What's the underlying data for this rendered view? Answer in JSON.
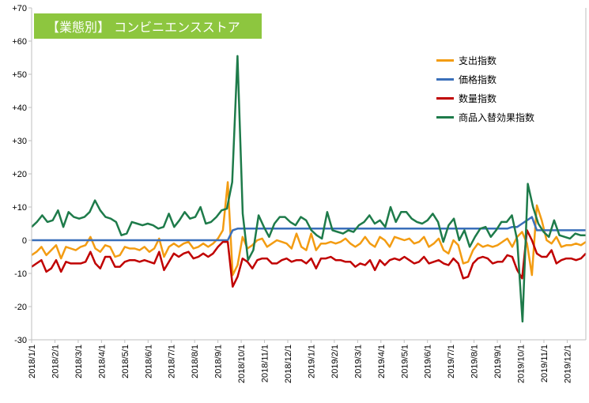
{
  "chart_data": {
    "type": "line",
    "title": "【業態別】 コンビニエンスストア",
    "ylim": [
      -30,
      70
    ],
    "yticks": [
      "+70",
      "+60",
      "+50",
      "+40",
      "+30",
      "+20",
      "+10",
      "0",
      "-10",
      "-20",
      "-30"
    ],
    "ytick_values": [
      70,
      60,
      50,
      40,
      30,
      20,
      10,
      0,
      -10,
      -20,
      -30
    ],
    "xticks": [
      "2018/1/1",
      "2018/2/1",
      "2018/3/1",
      "2018/4/1",
      "2018/5/1",
      "2018/6/1",
      "2018/7/1",
      "2018/8/1",
      "2018/9/1",
      "2018/10/1",
      "2018/11/1",
      "2018/12/1",
      "2019/1/1",
      "2019/2/1",
      "2019/3/1",
      "2019/4/1",
      "2019/5/1",
      "2019/6/1",
      "2019/7/1",
      "2019/8/1",
      "2019/9/1",
      "2019/10/1",
      "2019/11/1",
      "2019/12/1"
    ],
    "legend_position": "top-right",
    "grid": false,
    "series": [
      {
        "name": "支出指数",
        "color": "#f39c12",
        "values": [
          -4.5,
          -3.5,
          -2,
          -4.5,
          -3,
          -1.5,
          -5.5,
          -2,
          -2.5,
          -3,
          -2,
          -1.5,
          1,
          -2.5,
          -3.5,
          -1.5,
          -2,
          -5,
          -4.5,
          -2,
          -2.5,
          -2.5,
          -3,
          -2,
          -3.5,
          -2.5,
          0.5,
          -5,
          -2,
          -1,
          -2,
          -1,
          -0.5,
          -2.5,
          -2,
          -1,
          -2,
          -1,
          0.5,
          3,
          17.5,
          -10.5,
          -7.5,
          1,
          -2.5,
          -1.5,
          0,
          0.5,
          -2,
          -1,
          0,
          -0.5,
          -1,
          -2.5,
          2,
          -2,
          -3,
          2,
          -3,
          -1,
          -1,
          -0.5,
          -1,
          -0.5,
          0.5,
          -1,
          -2,
          -1,
          1,
          -1,
          -2,
          1,
          0,
          -2,
          1,
          0.5,
          0,
          0.5,
          -1,
          -0.5,
          1,
          -2,
          -1,
          0.5,
          -3,
          -4,
          0,
          -1.5,
          -7,
          -6.5,
          -3,
          -1,
          -2,
          -1.5,
          -2,
          -1.5,
          -0.5,
          0.5,
          -2,
          1,
          2.5,
          -1,
          -10.5,
          10.5,
          6,
          0,
          -1,
          1,
          -2,
          -1.5,
          -1.5,
          -1,
          -1.5,
          -0.5
        ]
      },
      {
        "name": "価格指数",
        "color": "#3a6fba",
        "values": [
          0,
          0,
          0,
          0,
          0,
          0,
          0,
          0,
          0,
          0,
          0,
          0,
          0,
          0,
          0,
          0,
          0,
          0,
          0,
          0,
          0,
          0,
          0,
          0,
          0,
          0,
          0,
          0,
          0,
          0,
          0,
          0,
          0,
          0,
          0,
          0,
          0,
          0,
          0,
          0,
          0,
          3,
          3.5,
          3.5,
          3.5,
          3.5,
          3.5,
          3.5,
          3.5,
          3.5,
          3.5,
          3.5,
          3.5,
          3.5,
          3.5,
          3.5,
          3.5,
          3.5,
          3.5,
          3.5,
          3.5,
          3.5,
          3.5,
          3.5,
          3.5,
          3.5,
          3.5,
          3.5,
          3.5,
          3.5,
          3.5,
          3.5,
          3.5,
          3.5,
          3.5,
          3.5,
          3.5,
          3.5,
          3.5,
          3.5,
          3.5,
          3.5,
          3.5,
          3.5,
          3.5,
          3.5,
          3.5,
          3.5,
          3.5,
          3.5,
          3.5,
          3.5,
          3.5,
          3.5,
          3.5,
          3.5,
          3.5,
          3.5,
          4,
          4,
          5,
          6,
          7,
          3,
          3,
          3,
          3,
          3,
          3,
          3,
          3,
          3,
          3,
          3
        ]
      },
      {
        "name": "数量指数",
        "color": "#c00000",
        "values": [
          -8,
          -7,
          -6,
          -9.5,
          -8.5,
          -6,
          -9.5,
          -6.5,
          -7,
          -7,
          -7,
          -6.5,
          -3.5,
          -7,
          -8.5,
          -5,
          -5,
          -8,
          -8,
          -6.5,
          -6,
          -6,
          -6.5,
          -6,
          -6.5,
          -7,
          -3.5,
          -9,
          -6.5,
          -4,
          -5,
          -4,
          -3.5,
          -5.5,
          -5,
          -4,
          -5,
          -4,
          -2,
          -0.5,
          -0.5,
          -14,
          -11,
          -5.5,
          -6.5,
          -8.5,
          -6,
          -5.5,
          -5.5,
          -7,
          -7,
          -6,
          -5.5,
          -6.5,
          -6,
          -6,
          -7,
          -5.5,
          -8.5,
          -5.5,
          -5.5,
          -5,
          -6,
          -6,
          -6.5,
          -6.5,
          -8,
          -7,
          -7.5,
          -6,
          -9,
          -6,
          -7.5,
          -6,
          -5.5,
          -6,
          -5,
          -6,
          -7,
          -6.5,
          -5,
          -7,
          -6.5,
          -6,
          -7,
          -7.5,
          -5.5,
          -7,
          -11.5,
          -11,
          -7,
          -5.5,
          -5,
          -5.5,
          -7,
          -6.5,
          -6.5,
          -4.5,
          -5,
          -9,
          -11.5,
          3,
          0,
          -4,
          -5,
          -5,
          -3,
          -7,
          -6,
          -5.5,
          -5.5,
          -6,
          -5.5,
          -4
        ]
      },
      {
        "name": "商品入替効果指数",
        "color": "#1e7b4a",
        "values": [
          4,
          5.5,
          7.5,
          5.5,
          6,
          9,
          4,
          8.5,
          7,
          6.5,
          7,
          8.5,
          12,
          9,
          7,
          6.5,
          5.5,
          1.5,
          2,
          5.5,
          5,
          4.5,
          5,
          4.5,
          3.5,
          4,
          8,
          4,
          6,
          8.5,
          6.5,
          7,
          10,
          5,
          5.5,
          7,
          9,
          9.5,
          17.5,
          55.5,
          8,
          -6,
          -3,
          7.5,
          4,
          1,
          5,
          7,
          7,
          5.5,
          4.5,
          7,
          6,
          3,
          1.5,
          0.5,
          8.5,
          3,
          2.5,
          2,
          3,
          2.5,
          4.5,
          5.5,
          7.5,
          5,
          6,
          4,
          10,
          5.5,
          8.5,
          8.5,
          6.5,
          5.5,
          5,
          6,
          8,
          5.5,
          -0.5,
          4.5,
          6.5,
          0,
          3,
          -2,
          1,
          3.5,
          4,
          1,
          3,
          5.5,
          5.5,
          7.5,
          0,
          -24.5,
          17,
          10,
          5,
          2.5,
          1,
          6,
          1.5,
          1,
          0.5,
          2,
          1.5,
          1.5
        ]
      }
    ]
  }
}
